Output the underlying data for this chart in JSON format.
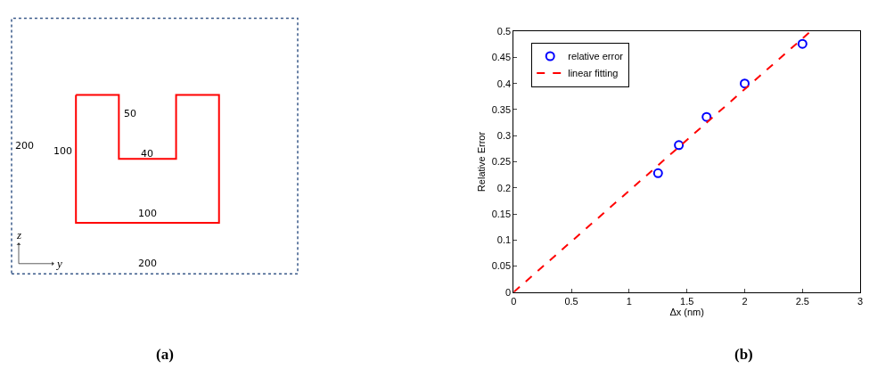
{
  "chart_data": [
    {
      "type": "other",
      "title": "(a)",
      "annotations": [
        "200",
        "100",
        "50",
        "40",
        "100",
        "200",
        "z",
        "y"
      ]
    },
    {
      "type": "scatter",
      "title": "(b)",
      "xlabel": "Δx (nm)",
      "ylabel": "Relative Error",
      "series": [
        {
          "name": "relative error",
          "type": "scatter",
          "color": "#0000ff",
          "marker": "circle",
          "x": [
            1.25,
            1.43,
            1.67,
            2.0,
            2.5
          ],
          "values": [
            0.228,
            0.282,
            0.336,
            0.4,
            0.476
          ]
        },
        {
          "name": "linear fitting",
          "type": "line",
          "color": "#ff0000",
          "line_style": "dashed",
          "marker": "none",
          "x": [
            0,
            2.57
          ],
          "values": [
            0,
            0.5
          ]
        }
      ],
      "xlim": [
        0,
        3
      ],
      "ylim": [
        0,
        0.5
      ],
      "xticks": [
        0,
        0.5,
        1,
        1.5,
        2,
        2.5,
        3
      ],
      "yticks": [
        0,
        0.05,
        0.1,
        0.15,
        0.2,
        0.25,
        0.3,
        0.35,
        0.4,
        0.45,
        0.5
      ],
      "legend": "top left"
    }
  ]
}
